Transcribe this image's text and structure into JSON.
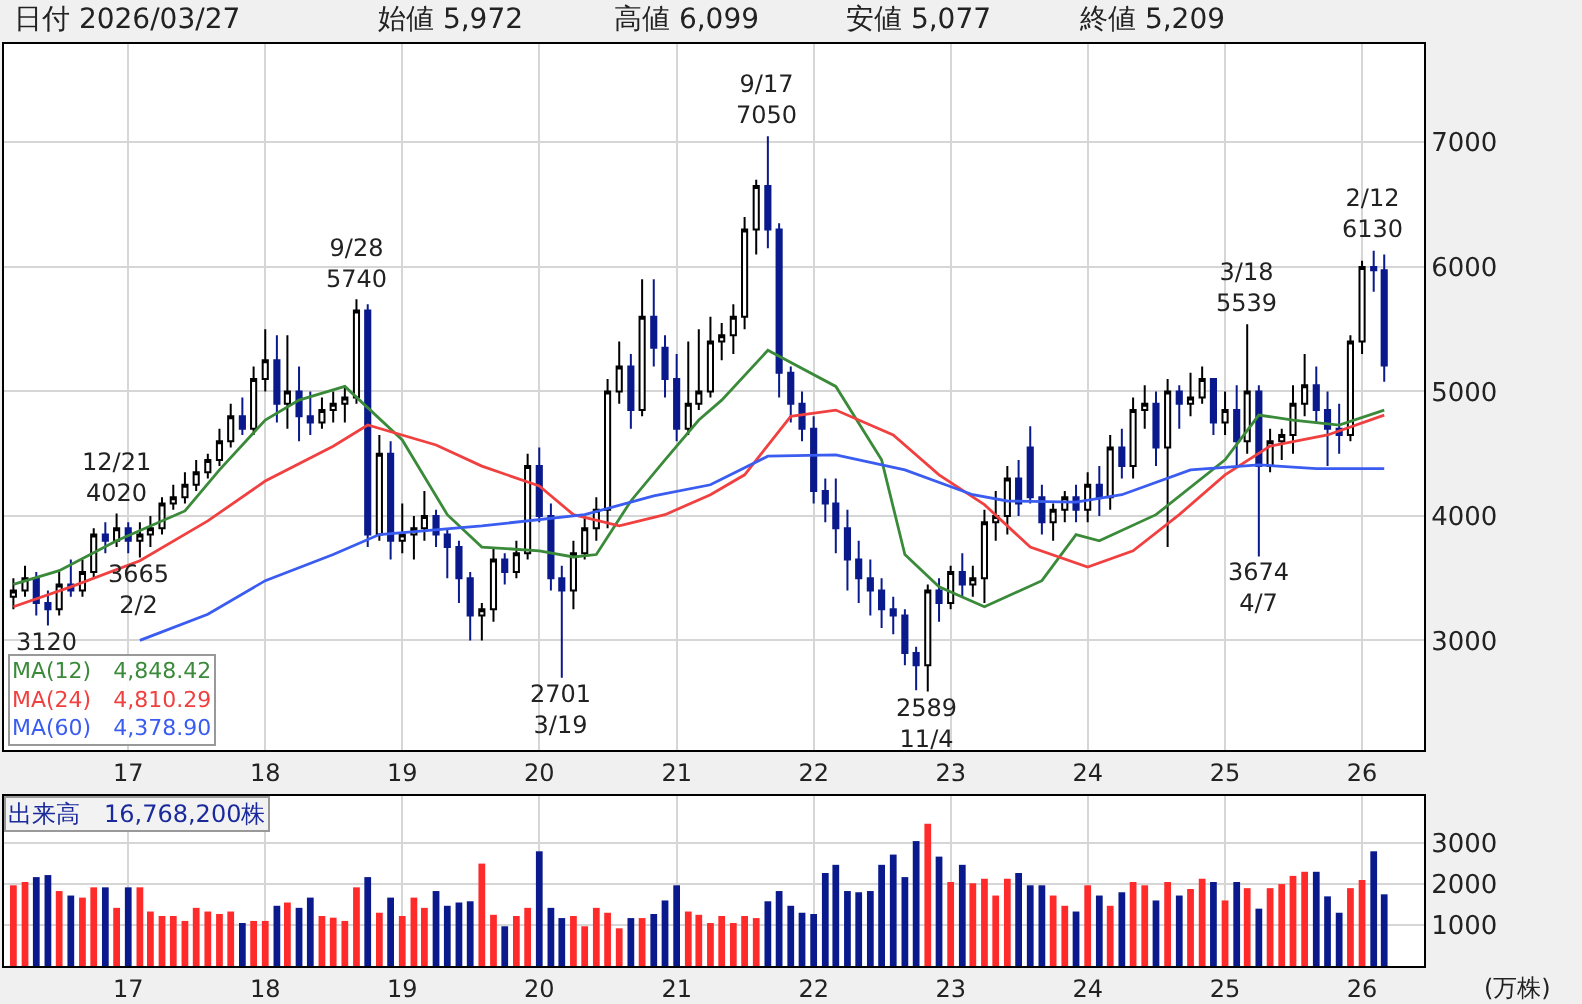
{
  "chart_data": [
    {
      "type": "candlestick",
      "grid": true,
      "colors": [
        "#ffffff",
        "#ffffff",
        "#0a1a8c",
        "#0a1a8c",
        "#ffffff",
        "#0a1a8c",
        "#ffffff",
        "#ffffff",
        "#0a1a8c",
        "#ffffff",
        "#0a1a8c",
        "#ffffff",
        "#ffffff",
        "#ffffff",
        "#ffffff",
        "#ffffff",
        "#ffffff",
        "#ffffff",
        "#ffffff",
        "#ffffff",
        "#0a1a8c",
        "#ffffff",
        "#ffffff",
        "#0a1a8c",
        "#ffffff",
        "#0a1a8c",
        "#0a1a8c",
        "#ffffff",
        "#ffffff",
        "#ffffff",
        "#ffffff",
        "#0a1a8c",
        "#ffffff",
        "#0a1a8c",
        "#ffffff",
        "#ffffff",
        "#ffffff",
        "#0a1a8c",
        "#0a1a8c",
        "#0a1a8c",
        "#0a1a8c",
        "#ffffff",
        "#ffffff",
        "#0a1a8c",
        "#ffffff",
        "#ffffff",
        "#0a1a8c",
        "#0a1a8c",
        "#0a1a8c",
        "#ffffff",
        "#ffffff",
        "#ffffff",
        "#ffffff",
        "#ffffff",
        "#0a1a8c",
        "#ffffff",
        "#0a1a8c",
        "#0a1a8c",
        "#0a1a8c",
        "#ffffff",
        "#ffffff",
        "#ffffff",
        "#ffffff",
        "#ffffff",
        "#ffffff",
        "#ffffff",
        "#0a1a8c",
        "#0a1a8c",
        "#0a1a8c",
        "#0a1a8c",
        "#0a1a8c",
        "#0a1a8c",
        "#0a1a8c",
        "#0a1a8c",
        "#0a1a8c",
        "#0a1a8c",
        "#0a1a8c",
        "#0a1a8c",
        "#0a1a8c",
        "#0a1a8c",
        "#ffffff",
        "#0a1a8c",
        "#ffffff",
        "#0a1a8c",
        "#ffffff",
        "#ffffff",
        "#ffffff",
        "#ffffff",
        "#0a1a8c",
        "#0a1a8c",
        "#0a1a8c",
        "#ffffff",
        "#ffffff",
        "#0a1a8c",
        "#ffffff",
        "#0a1a8c",
        "#ffffff",
        "#0a1a8c",
        "#ffffff",
        "#ffffff",
        "#0a1a8c",
        "#ffffff",
        "#0a1a8c",
        "#ffffff",
        "#ffffff",
        "#0a1a8c",
        "#ffffff",
        "#0a1a8c",
        "#ffffff",
        "#0a1a8c",
        "#ffffff",
        "#ffffff",
        "#ffffff",
        "#ffffff",
        "#0a1a8c",
        "#0a1a8c",
        "#0a1a8c",
        "#ffffff",
        "#ffffff",
        "#0a1a8c",
        "#0a1a8c"
      ],
      "legend": "bottom left",
      "marker": "none",
      "annotations": [
        "日付 2026/03/27",
        "始値 5,972",
        "高値 6,099",
        "安値 5,077",
        "終値 5,209",
        {
          "text": "3120",
          "x": "2016-06",
          "y": 3120
        },
        {
          "text": "12/21\n4020",
          "x": "2016-12",
          "y": 4020
        },
        {
          "text": "3665\n2/2",
          "x": "2017-02",
          "y": 3665
        },
        {
          "text": "9/28\n5740",
          "x": "2018-09",
          "y": 5740
        },
        {
          "text": "2701\n3/19",
          "x": "2020-03",
          "y": 2701
        },
        {
          "text": "9/17\n7050",
          "x": "2021-09",
          "y": 7050
        },
        {
          "text": "2589\n11/4",
          "x": "2022-11",
          "y": 2589
        },
        {
          "text": "3/18\n5539",
          "x": "2025-03",
          "y": 5539
        },
        {
          "text": "3674\n4/7",
          "x": "2025-04",
          "y": 3674
        },
        {
          "text": "2/12\n6130",
          "x": "2026-02",
          "y": 6130
        }
      ],
      "xlim": [
        "2016-02-05",
        "2026-06-15"
      ],
      "xticks": [
        {
          "value": "2017-01",
          "label": "17"
        },
        {
          "value": "2018-01",
          "label": "18"
        },
        {
          "value": "2019-01",
          "label": "19"
        },
        {
          "value": "2020-01",
          "label": "20"
        },
        {
          "value": "2021-01",
          "label": "21"
        },
        {
          "value": "2022-01",
          "label": "22"
        },
        {
          "value": "2023-01",
          "label": "23"
        },
        {
          "value": "2024-01",
          "label": "24"
        },
        {
          "value": "2025-01",
          "label": "25"
        },
        {
          "value": "2026-01",
          "label": "26"
        }
      ],
      "ylim": [
        2120,
        7790
      ],
      "yticks": [
        3000,
        4000,
        5000,
        6000,
        7000
      ],
      "x": [
        "2016-03",
        "2016-04",
        "2016-05",
        "2016-06",
        "2016-07",
        "2016-08",
        "2016-09",
        "2016-10",
        "2016-11",
        "2016-12",
        "2017-01",
        "2017-02",
        "2017-03",
        "2017-04",
        "2017-05",
        "2017-06",
        "2017-07",
        "2017-08",
        "2017-09",
        "2017-10",
        "2017-11",
        "2017-12",
        "2018-01",
        "2018-02",
        "2018-03",
        "2018-04",
        "2018-05",
        "2018-06",
        "2018-07",
        "2018-08",
        "2018-09",
        "2018-10",
        "2018-11",
        "2018-12",
        "2019-01",
        "2019-02",
        "2019-03",
        "2019-04",
        "2019-05",
        "2019-06",
        "2019-07",
        "2019-08",
        "2019-09",
        "2019-10",
        "2019-11",
        "2019-12",
        "2020-01",
        "2020-02",
        "2020-03",
        "2020-04",
        "2020-05",
        "2020-06",
        "2020-07",
        "2020-08",
        "2020-09",
        "2020-10",
        "2020-11",
        "2020-12",
        "2021-01",
        "2021-02",
        "2021-03",
        "2021-04",
        "2021-05",
        "2021-06",
        "2021-07",
        "2021-08",
        "2021-09",
        "2021-10",
        "2021-11",
        "2021-12",
        "2022-01",
        "2022-02",
        "2022-03",
        "2022-04",
        "2022-05",
        "2022-06",
        "2022-07",
        "2022-08",
        "2022-09",
        "2022-10",
        "2022-11",
        "2022-12",
        "2023-01",
        "2023-02",
        "2023-03",
        "2023-04",
        "2023-05",
        "2023-06",
        "2023-07",
        "2023-08",
        "2023-09",
        "2023-10",
        "2023-11",
        "2023-12",
        "2024-01",
        "2024-02",
        "2024-03",
        "2024-04",
        "2024-05",
        "2024-06",
        "2024-07",
        "2024-08",
        "2024-09",
        "2024-10",
        "2024-11",
        "2024-12",
        "2025-01",
        "2025-02",
        "2025-03",
        "2025-04",
        "2025-05",
        "2025-06",
        "2025-07",
        "2025-08",
        "2025-09",
        "2025-10",
        "2025-11",
        "2025-12",
        "2026-01",
        "2026-02",
        "2026-03"
      ],
      "ohlc": [
        [
          3350,
          3500,
          3250,
          3400
        ],
        [
          3400,
          3600,
          3350,
          3500
        ],
        [
          3500,
          3550,
          3200,
          3300
        ],
        [
          3300,
          3400,
          3120,
          3250
        ],
        [
          3250,
          3550,
          3200,
          3450
        ],
        [
          3450,
          3650,
          3350,
          3400
        ],
        [
          3400,
          3650,
          3350,
          3550
        ],
        [
          3550,
          3900,
          3500,
          3850
        ],
        [
          3850,
          3950,
          3700,
          3800
        ],
        [
          3800,
          4020,
          3750,
          3900
        ],
        [
          3900,
          3950,
          3700,
          3800
        ],
        [
          3800,
          3950,
          3665,
          3850
        ],
        [
          3850,
          4000,
          3750,
          3900
        ],
        [
          3900,
          4150,
          3850,
          4100
        ],
        [
          4100,
          4250,
          4050,
          4150
        ],
        [
          4150,
          4350,
          4100,
          4250
        ],
        [
          4250,
          4450,
          4200,
          4350
        ],
        [
          4350,
          4500,
          4300,
          4450
        ],
        [
          4450,
          4700,
          4400,
          4600
        ],
        [
          4600,
          4900,
          4550,
          4800
        ],
        [
          4800,
          4950,
          4650,
          4700
        ],
        [
          4700,
          5200,
          4650,
          5100
        ],
        [
          5100,
          5500,
          5000,
          5250
        ],
        [
          5250,
          5450,
          4750,
          4900
        ],
        [
          4900,
          5450,
          4700,
          5000
        ],
        [
          5000,
          5200,
          4600,
          4800
        ],
        [
          4800,
          5000,
          4650,
          4750
        ],
        [
          4750,
          4950,
          4700,
          4850
        ],
        [
          4850,
          5000,
          4750,
          4900
        ],
        [
          4900,
          5050,
          4750,
          4950
        ],
        [
          4950,
          5740,
          4900,
          5650
        ],
        [
          5650,
          5700,
          3750,
          3850
        ],
        [
          3850,
          4650,
          3800,
          4500
        ],
        [
          4500,
          4600,
          3650,
          3800
        ],
        [
          3800,
          4100,
          3700,
          3850
        ],
        [
          3850,
          4000,
          3650,
          3900
        ],
        [
          3900,
          4200,
          3800,
          4000
        ],
        [
          4000,
          4050,
          3750,
          3850
        ],
        [
          3850,
          3900,
          3500,
          3750
        ],
        [
          3750,
          3800,
          3300,
          3500
        ],
        [
          3500,
          3550,
          3000,
          3200
        ],
        [
          3200,
          3300,
          3000,
          3250
        ],
        [
          3250,
          3750,
          3150,
          3650
        ],
        [
          3650,
          3700,
          3450,
          3550
        ],
        [
          3550,
          3800,
          3500,
          3700
        ],
        [
          3700,
          4500,
          3650,
          4400
        ],
        [
          4400,
          4550,
          3950,
          4000
        ],
        [
          4000,
          4100,
          3400,
          3500
        ],
        [
          3500,
          3600,
          2701,
          3400
        ],
        [
          3400,
          3800,
          3250,
          3700
        ],
        [
          3700,
          4000,
          3650,
          3900
        ],
        [
          3900,
          4150,
          3800,
          4050
        ],
        [
          4050,
          5100,
          3900,
          5000
        ],
        [
          5000,
          5400,
          4900,
          5200
        ],
        [
          5200,
          5300,
          4700,
          4850
        ],
        [
          4850,
          5900,
          4800,
          5600
        ],
        [
          5600,
          5900,
          5200,
          5350
        ],
        [
          5350,
          5450,
          4950,
          5100
        ],
        [
          5100,
          5300,
          4600,
          4700
        ],
        [
          4700,
          5400,
          4650,
          4900
        ],
        [
          4900,
          5500,
          4850,
          5000
        ],
        [
          5000,
          5600,
          4950,
          5400
        ],
        [
          5400,
          5550,
          5250,
          5450
        ],
        [
          5450,
          5700,
          5300,
          5600
        ],
        [
          5600,
          6400,
          5500,
          6300
        ],
        [
          6300,
          6700,
          6100,
          6650
        ],
        [
          6650,
          7050,
          6150,
          6300
        ],
        [
          6300,
          6350,
          4950,
          5150
        ],
        [
          5150,
          5200,
          4750,
          4900
        ],
        [
          4900,
          5000,
          4600,
          4700
        ],
        [
          4700,
          4800,
          4100,
          4200
        ],
        [
          4200,
          4300,
          3950,
          4100
        ],
        [
          4100,
          4300,
          3700,
          3900
        ],
        [
          3900,
          4050,
          3400,
          3650
        ],
        [
          3650,
          3800,
          3300,
          3500
        ],
        [
          3500,
          3650,
          3200,
          3400
        ],
        [
          3400,
          3500,
          3100,
          3250
        ],
        [
          3250,
          3350,
          3050,
          3200
        ],
        [
          3200,
          3250,
          2800,
          2900
        ],
        [
          2900,
          2950,
          2600,
          2800
        ],
        [
          2800,
          3450,
          2589,
          3400
        ],
        [
          3400,
          3500,
          3150,
          3300
        ],
        [
          3300,
          3600,
          3250,
          3550
        ],
        [
          3550,
          3700,
          3350,
          3450
        ],
        [
          3450,
          3600,
          3350,
          3500
        ],
        [
          3500,
          4050,
          3300,
          3950
        ],
        [
          3950,
          4200,
          3800,
          4000
        ],
        [
          4000,
          4400,
          3850,
          4300
        ],
        [
          4300,
          4450,
          4000,
          4100
        ],
        [
          4550,
          4720,
          4100,
          4150
        ],
        [
          4150,
          4250,
          3850,
          3950
        ],
        [
          3950,
          4100,
          3800,
          4050
        ],
        [
          4050,
          4200,
          3950,
          4150
        ],
        [
          4150,
          4250,
          3950,
          4050
        ],
        [
          4050,
          4350,
          3950,
          4250
        ],
        [
          4250,
          4400,
          4000,
          4150
        ],
        [
          4150,
          4650,
          4050,
          4550
        ],
        [
          4550,
          4700,
          4300,
          4400
        ],
        [
          4400,
          4950,
          4300,
          4850
        ],
        [
          4850,
          5050,
          4700,
          4900
        ],
        [
          4900,
          5000,
          4400,
          4550
        ],
        [
          4550,
          5100,
          3750,
          5000
        ],
        [
          5000,
          5050,
          4700,
          4900
        ],
        [
          4900,
          5150,
          4800,
          4950
        ],
        [
          4950,
          5200,
          4900,
          5100
        ],
        [
          5100,
          5100,
          4650,
          4750
        ],
        [
          4750,
          5000,
          4650,
          4850
        ],
        [
          4850,
          5050,
          4400,
          4600
        ],
        [
          4600,
          5539,
          4500,
          5000
        ],
        [
          5000,
          5050,
          3674,
          4400
        ],
        [
          4400,
          4700,
          4350,
          4600
        ],
        [
          4600,
          4700,
          4450,
          4650
        ],
        [
          4650,
          5050,
          4500,
          4900
        ],
        [
          4900,
          5300,
          4800,
          5050
        ],
        [
          5050,
          5200,
          4750,
          4850
        ],
        [
          4850,
          5000,
          4400,
          4700
        ],
        [
          4700,
          4900,
          4500,
          4650
        ],
        [
          4650,
          5450,
          4600,
          5400
        ],
        [
          5400,
          6050,
          5300,
          6000
        ],
        [
          6000,
          6130,
          5800,
          5972
        ],
        [
          5972,
          6099,
          5077,
          5209
        ]
      ],
      "series": [
        {
          "type": "line",
          "name": "MA(12)　4,848.42",
          "color": "#3a8a3a",
          "x": [
            "2016-03",
            "2016-07",
            "2016-12",
            "2017-06",
            "2017-09",
            "2018-01",
            "2018-04",
            "2018-08",
            "2019-01",
            "2019-05",
            "2019-08",
            "2020-01",
            "2020-04",
            "2020-06",
            "2020-09",
            "2020-12",
            "2021-03",
            "2021-05",
            "2021-09",
            "2022-03",
            "2022-07",
            "2022-09",
            "2022-12",
            "2023-04",
            "2023-09",
            "2023-12",
            "2024-02",
            "2024-07",
            "2025-01",
            "2025-04",
            "2025-07",
            "2025-11",
            "2026-03"
          ],
          "values": [
            3450,
            3560,
            3800,
            4040,
            4370,
            4770,
            4930,
            5040,
            4610,
            4010,
            3750,
            3720,
            3670,
            3690,
            4120,
            4450,
            4770,
            4930,
            5330,
            5040,
            4450,
            3690,
            3430,
            3270,
            3480,
            3850,
            3800,
            4010,
            4450,
            4810,
            4770,
            4730,
            4850
          ]
        },
        {
          "type": "line",
          "name": "MA(24)　4,810.29",
          "color": "#f04040",
          "x": [
            "2016-03",
            "2016-08",
            "2017-02",
            "2017-08",
            "2018-01",
            "2018-07",
            "2018-10",
            "2019-04",
            "2019-08",
            "2020-01",
            "2020-04",
            "2020-08",
            "2020-12",
            "2021-04",
            "2021-07",
            "2021-11",
            "2022-03",
            "2022-08",
            "2022-12",
            "2023-04",
            "2023-08",
            "2024-01",
            "2024-05",
            "2024-09",
            "2025-01",
            "2025-05",
            "2025-10",
            "2026-03"
          ],
          "values": [
            3270,
            3430,
            3640,
            3960,
            4280,
            4560,
            4730,
            4570,
            4400,
            4240,
            4010,
            3920,
            4010,
            4170,
            4330,
            4800,
            4850,
            4650,
            4330,
            4090,
            3750,
            3590,
            3720,
            4010,
            4330,
            4560,
            4650,
            4810
          ]
        },
        {
          "type": "line",
          "name": "MA(60)　4,378.90",
          "color": "#3a5cf0",
          "x": [
            "2017-02",
            "2017-08",
            "2018-01",
            "2018-07",
            "2018-11",
            "2019-08",
            "2020-05",
            "2020-11",
            "2021-04",
            "2021-09",
            "2022-03",
            "2022-09",
            "2023-03",
            "2023-06",
            "2023-12",
            "2024-04",
            "2024-10",
            "2025-04",
            "2025-09",
            "2026-03"
          ],
          "values": [
            3000,
            3210,
            3480,
            3690,
            3850,
            3920,
            4010,
            4160,
            4250,
            4480,
            4490,
            4370,
            4170,
            4120,
            4110,
            4170,
            4370,
            4410,
            4380,
            4380
          ]
        }
      ]
    },
    {
      "type": "bar",
      "title": "出来高　16,768,200株",
      "annotations": [
        "(万株)"
      ],
      "grid": true,
      "xlim": [
        "2016-02-05",
        "2026-06-15"
      ],
      "xticks": [
        {
          "value": "2017-01",
          "label": "17"
        },
        {
          "value": "2018-01",
          "label": "18"
        },
        {
          "value": "2019-01",
          "label": "19"
        },
        {
          "value": "2020-01",
          "label": "20"
        },
        {
          "value": "2021-01",
          "label": "21"
        },
        {
          "value": "2022-01",
          "label": "22"
        },
        {
          "value": "2023-01",
          "label": "23"
        },
        {
          "value": "2024-01",
          "label": "24"
        },
        {
          "value": "2025-01",
          "label": "25"
        },
        {
          "value": "2026-01",
          "label": "26"
        }
      ],
      "ylim": [
        0,
        4150
      ],
      "yticks": [
        1000,
        2000,
        3000
      ],
      "x": [
        "2016-03",
        "2016-04",
        "2016-05",
        "2016-06",
        "2016-07",
        "2016-08",
        "2016-09",
        "2016-10",
        "2016-11",
        "2016-12",
        "2017-01",
        "2017-02",
        "2017-03",
        "2017-04",
        "2017-05",
        "2017-06",
        "2017-07",
        "2017-08",
        "2017-09",
        "2017-10",
        "2017-11",
        "2017-12",
        "2018-01",
        "2018-02",
        "2018-03",
        "2018-04",
        "2018-05",
        "2018-06",
        "2018-07",
        "2018-08",
        "2018-09",
        "2018-10",
        "2018-11",
        "2018-12",
        "2019-01",
        "2019-02",
        "2019-03",
        "2019-04",
        "2019-05",
        "2019-06",
        "2019-07",
        "2019-08",
        "2019-09",
        "2019-10",
        "2019-11",
        "2019-12",
        "2020-01",
        "2020-02",
        "2020-03",
        "2020-04",
        "2020-05",
        "2020-06",
        "2020-07",
        "2020-08",
        "2020-09",
        "2020-10",
        "2020-11",
        "2020-12",
        "2021-01",
        "2021-02",
        "2021-03",
        "2021-04",
        "2021-05",
        "2021-06",
        "2021-07",
        "2021-08",
        "2021-09",
        "2021-10",
        "2021-11",
        "2021-12",
        "2022-01",
        "2022-02",
        "2022-03",
        "2022-04",
        "2022-05",
        "2022-06",
        "2022-07",
        "2022-08",
        "2022-09",
        "2022-10",
        "2022-11",
        "2022-12",
        "2023-01",
        "2023-02",
        "2023-03",
        "2023-04",
        "2023-05",
        "2023-06",
        "2023-07",
        "2023-08",
        "2023-09",
        "2023-10",
        "2023-11",
        "2023-12",
        "2024-01",
        "2024-02",
        "2024-03",
        "2024-04",
        "2024-05",
        "2024-06",
        "2024-07",
        "2024-08",
        "2024-09",
        "2024-10",
        "2024-11",
        "2024-12",
        "2025-01",
        "2025-02",
        "2025-03",
        "2025-04",
        "2025-05",
        "2025-06",
        "2025-07",
        "2025-08",
        "2025-09",
        "2025-10",
        "2025-11",
        "2025-12",
        "2026-01",
        "2026-02",
        "2026-03"
      ],
      "values": [
        1970,
        2050,
        2170,
        2220,
        1830,
        1720,
        1670,
        1920,
        1920,
        1420,
        1920,
        1920,
        1330,
        1220,
        1220,
        1100,
        1420,
        1330,
        1270,
        1330,
        1050,
        1100,
        1100,
        1470,
        1550,
        1420,
        1670,
        1220,
        1180,
        1100,
        1920,
        2170,
        1300,
        1670,
        1220,
        1670,
        1420,
        1830,
        1470,
        1550,
        1580,
        2500,
        1250,
        970,
        1220,
        1420,
        2800,
        1420,
        1170,
        1220,
        970,
        1420,
        1300,
        920,
        1170,
        1170,
        1270,
        1600,
        1970,
        1330,
        1250,
        1050,
        1220,
        1050,
        1220,
        1170,
        1580,
        1830,
        1470,
        1300,
        1270,
        2270,
        2470,
        1830,
        1800,
        1830,
        2470,
        2720,
        2170,
        3050,
        3470,
        2670,
        2050,
        2470,
        2020,
        2130,
        1720,
        2130,
        2270,
        1970,
        1970,
        1720,
        1470,
        1330,
        1970,
        1720,
        1470,
        1800,
        2050,
        1970,
        1600,
        2050,
        1720,
        1880,
        2130,
        2050,
        1600,
        2050,
        1900,
        1400,
        1900,
        2000,
        2200,
        2300,
        2300,
        1700,
        1300,
        1900,
        2100,
        2800,
        1750
      ],
      "colors": [
        "#ff2a2a",
        "#ff2a2a",
        "#0a1a8c",
        "#0a1a8c",
        "#ff2a2a",
        "#0a1a8c",
        "#ff2a2a",
        "#ff2a2a",
        "#0a1a8c",
        "#ff2a2a",
        "#0a1a8c",
        "#ff2a2a",
        "#ff2a2a",
        "#ff2a2a",
        "#ff2a2a",
        "#ff2a2a",
        "#ff2a2a",
        "#ff2a2a",
        "#ff2a2a",
        "#ff2a2a",
        "#0a1a8c",
        "#ff2a2a",
        "#ff2a2a",
        "#0a1a8c",
        "#ff2a2a",
        "#0a1a8c",
        "#0a1a8c",
        "#ff2a2a",
        "#ff2a2a",
        "#ff2a2a",
        "#ff2a2a",
        "#0a1a8c",
        "#ff2a2a",
        "#0a1a8c",
        "#ff2a2a",
        "#ff2a2a",
        "#ff2a2a",
        "#0a1a8c",
        "#0a1a8c",
        "#0a1a8c",
        "#0a1a8c",
        "#ff2a2a",
        "#ff2a2a",
        "#0a1a8c",
        "#ff2a2a",
        "#ff2a2a",
        "#0a1a8c",
        "#0a1a8c",
        "#0a1a8c",
        "#ff2a2a",
        "#ff2a2a",
        "#ff2a2a",
        "#ff2a2a",
        "#ff2a2a",
        "#0a1a8c",
        "#ff2a2a",
        "#0a1a8c",
        "#0a1a8c",
        "#0a1a8c",
        "#ff2a2a",
        "#ff2a2a",
        "#ff2a2a",
        "#ff2a2a",
        "#ff2a2a",
        "#ff2a2a",
        "#ff2a2a",
        "#0a1a8c",
        "#0a1a8c",
        "#0a1a8c",
        "#0a1a8c",
        "#0a1a8c",
        "#0a1a8c",
        "#0a1a8c",
        "#0a1a8c",
        "#0a1a8c",
        "#0a1a8c",
        "#0a1a8c",
        "#0a1a8c",
        "#0a1a8c",
        "#0a1a8c",
        "#ff2a2a",
        "#0a1a8c",
        "#ff2a2a",
        "#0a1a8c",
        "#ff2a2a",
        "#ff2a2a",
        "#ff2a2a",
        "#ff2a2a",
        "#0a1a8c",
        "#0a1a8c",
        "#0a1a8c",
        "#ff2a2a",
        "#ff2a2a",
        "#0a1a8c",
        "#ff2a2a",
        "#0a1a8c",
        "#ff2a2a",
        "#0a1a8c",
        "#ff2a2a",
        "#ff2a2a",
        "#0a1a8c",
        "#ff2a2a",
        "#0a1a8c",
        "#ff2a2a",
        "#ff2a2a",
        "#0a1a8c",
        "#ff2a2a",
        "#0a1a8c",
        "#ff2a2a",
        "#0a1a8c",
        "#ff2a2a",
        "#ff2a2a",
        "#ff2a2a",
        "#ff2a2a",
        "#0a1a8c",
        "#0a1a8c",
        "#0a1a8c",
        "#ff2a2a",
        "#ff2a2a",
        "#0a1a8c",
        "#0a1a8c"
      ]
    }
  ]
}
